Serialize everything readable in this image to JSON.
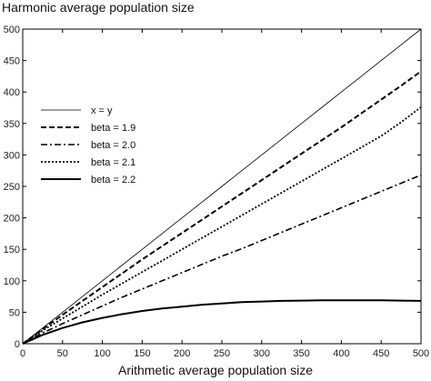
{
  "chart_data": {
    "type": "line",
    "title": "",
    "ylabel": "Harmonic average population size",
    "xlabel": "Arithmetic average population size",
    "xlim": [
      0,
      500
    ],
    "ylim": [
      0,
      500
    ],
    "xticks": [
      0,
      50,
      100,
      150,
      200,
      250,
      300,
      350,
      400,
      450,
      500
    ],
    "yticks": [
      0,
      50,
      100,
      150,
      200,
      250,
      300,
      350,
      400,
      450,
      500
    ],
    "grid": false,
    "legend_position": "upper-left",
    "x": [
      0,
      25,
      50,
      75,
      100,
      125,
      150,
      175,
      200,
      225,
      250,
      275,
      300,
      325,
      350,
      375,
      400,
      425,
      450,
      475,
      500
    ],
    "series": [
      {
        "name": "x = y",
        "style": "thin-solid",
        "values": [
          0,
          25,
          50,
          75,
          100,
          125,
          150,
          175,
          200,
          225,
          250,
          275,
          300,
          325,
          350,
          375,
          400,
          425,
          450,
          475,
          500
        ]
      },
      {
        "name": "beta = 1.9",
        "style": "dashed",
        "values": [
          0,
          23,
          46,
          68,
          90,
          112,
          134,
          155,
          176,
          197,
          218,
          239,
          260,
          281,
          302,
          323,
          344,
          366,
          388,
          410,
          433
        ]
      },
      {
        "name": "beta = 2.0",
        "style": "dash-dot",
        "values": [
          0,
          17,
          32,
          46,
          60,
          74,
          87,
          100,
          113,
          126,
          139,
          151,
          164,
          177,
          190,
          203,
          216,
          229,
          242,
          255,
          268
        ]
      },
      {
        "name": "beta = 2.1",
        "style": "dotted",
        "values": [
          0,
          21,
          40,
          59,
          78,
          96,
          114,
          132,
          150,
          168,
          186,
          204,
          222,
          240,
          258,
          276,
          294,
          312,
          330,
          352,
          376
        ]
      },
      {
        "name": "beta = 2.2",
        "style": "thick-solid",
        "values": [
          0,
          14,
          25,
          34,
          41,
          47,
          52,
          56,
          59,
          62,
          64,
          66,
          67,
          68,
          68.5,
          69,
          69,
          69,
          69,
          68.5,
          68
        ]
      }
    ]
  }
}
